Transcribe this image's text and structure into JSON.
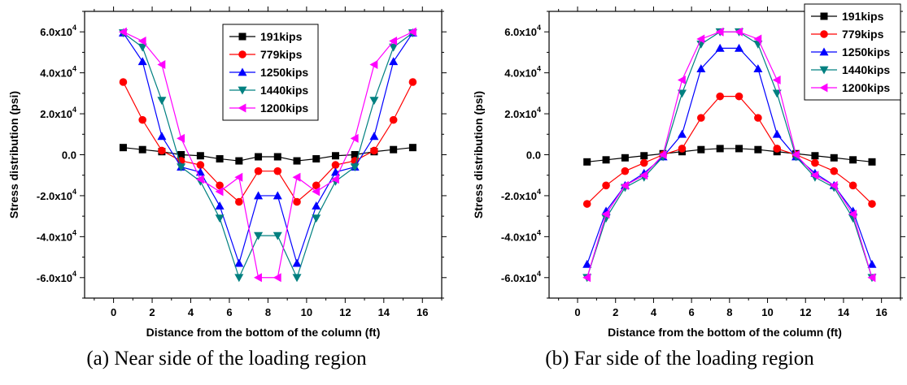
{
  "chart_data": [
    {
      "type": "line",
      "caption": "(a) Near side of the loading region",
      "xlabel": "Distance from the bottom of the column (ft)",
      "ylabel": "Stress distribution (psi)",
      "xlim": [
        -1.5,
        17
      ],
      "ylim": [
        -70000,
        70000
      ],
      "xticks": [
        0,
        2,
        4,
        6,
        8,
        10,
        12,
        14,
        16
      ],
      "yticks": [
        -60000,
        -40000,
        -20000,
        0,
        20000,
        40000,
        60000
      ],
      "ytick_labels": [
        "-6.0x10",
        "-4.0x10",
        "-2.0x10",
        "0.0",
        "2.0x10",
        "4.0x10",
        "6.0x10"
      ],
      "ytick_exponent": "4",
      "legend_position": "top-center",
      "x": [
        0.5,
        1.5,
        2.5,
        3.5,
        4.5,
        5.5,
        6.5,
        7.5,
        8.5,
        9.5,
        10.5,
        11.5,
        12.5,
        13.5,
        14.5,
        15.5
      ],
      "series": [
        {
          "name": "191kips",
          "color": "#000000",
          "marker": "square",
          "values": [
            3500,
            2500,
            1500,
            0,
            -500,
            -2000,
            -3000,
            -1000,
            -1000,
            -3000,
            -2000,
            -500,
            0,
            1500,
            2500,
            3500
          ]
        },
        {
          "name": "779kips",
          "color": "#ff0000",
          "marker": "circle",
          "values": [
            35500,
            17000,
            2000,
            -3000,
            -5000,
            -15000,
            -23000,
            -8000,
            -8000,
            -23000,
            -15000,
            -5000,
            -3000,
            2000,
            17000,
            35500
          ]
        },
        {
          "name": "1250kips",
          "color": "#0000ff",
          "marker": "triangle-up",
          "values": [
            59500,
            45500,
            9000,
            -6000,
            -8500,
            -25000,
            -53000,
            -20000,
            -20000,
            -53000,
            -25000,
            -8500,
            -6000,
            9000,
            45500,
            59500
          ]
        },
        {
          "name": "1440kips",
          "color": "#008080",
          "marker": "triangle-down",
          "values": [
            59500,
            52500,
            26500,
            -6000,
            -13000,
            -31000,
            -60000,
            -39500,
            -39500,
            -60000,
            -31000,
            -13000,
            -6000,
            26500,
            52500,
            59500
          ]
        },
        {
          "name": "1200kips",
          "color": "#ff00ff",
          "marker": "triangle-left",
          "values": [
            60000,
            55500,
            44000,
            8000,
            -12000,
            -18000,
            -11000,
            -60000,
            -60000,
            -11000,
            -18000,
            -12000,
            8000,
            44000,
            55500,
            60000
          ]
        }
      ]
    },
    {
      "type": "line",
      "caption": "(b) Far side of the loading region",
      "xlabel": "Distance from the bottom of the column (ft)",
      "ylabel": "Stress distribution (psi)",
      "xlim": [
        -1.5,
        17
      ],
      "ylim": [
        -70000,
        70000
      ],
      "xticks": [
        0,
        2,
        4,
        6,
        8,
        10,
        12,
        14,
        16
      ],
      "yticks": [
        -60000,
        -40000,
        -20000,
        0,
        20000,
        40000,
        60000
      ],
      "ytick_labels": [
        "-6.0x10",
        "-4.0x10",
        "-2.0x10",
        "0.0",
        "2.0x10",
        "4.0x10",
        "6.0x10"
      ],
      "ytick_exponent": "4",
      "legend_position": "top-right",
      "x": [
        0.5,
        1.5,
        2.5,
        3.5,
        4.5,
        5.5,
        6.5,
        7.5,
        8.5,
        9.5,
        10.5,
        11.5,
        12.5,
        13.5,
        14.5,
        15.5
      ],
      "series": [
        {
          "name": "191kips",
          "color": "#000000",
          "marker": "square",
          "values": [
            -3500,
            -2500,
            -1500,
            -500,
            500,
            1500,
            2500,
            3000,
            3000,
            2500,
            1500,
            500,
            -500,
            -1500,
            -2500,
            -3500
          ]
        },
        {
          "name": "779kips",
          "color": "#ff0000",
          "marker": "circle",
          "values": [
            -24000,
            -15000,
            -8000,
            -4000,
            0,
            3000,
            18000,
            28500,
            28500,
            18000,
            3000,
            0,
            -4000,
            -8000,
            -15000,
            -24000
          ]
        },
        {
          "name": "1250kips",
          "color": "#0000ff",
          "marker": "triangle-up",
          "values": [
            -53500,
            -27500,
            -15000,
            -9000,
            -1000,
            10000,
            42000,
            52000,
            52000,
            42000,
            10000,
            -1000,
            -9000,
            -15000,
            -27500,
            -53500
          ]
        },
        {
          "name": "1440kips",
          "color": "#008080",
          "marker": "triangle-down",
          "values": [
            -60000,
            -31000,
            -16000,
            -11000,
            -1000,
            30000,
            54000,
            60000,
            60000,
            54000,
            30000,
            -1000,
            -11000,
            -16000,
            -31000,
            -60000
          ]
        },
        {
          "name": "1200kips",
          "color": "#ff00ff",
          "marker": "triangle-left",
          "values": [
            -60000,
            -29000,
            -15000,
            -10000,
            0,
            36500,
            56500,
            60000,
            60000,
            56500,
            36500,
            0,
            -10000,
            -15000,
            -29000,
            -60000
          ]
        }
      ]
    }
  ]
}
